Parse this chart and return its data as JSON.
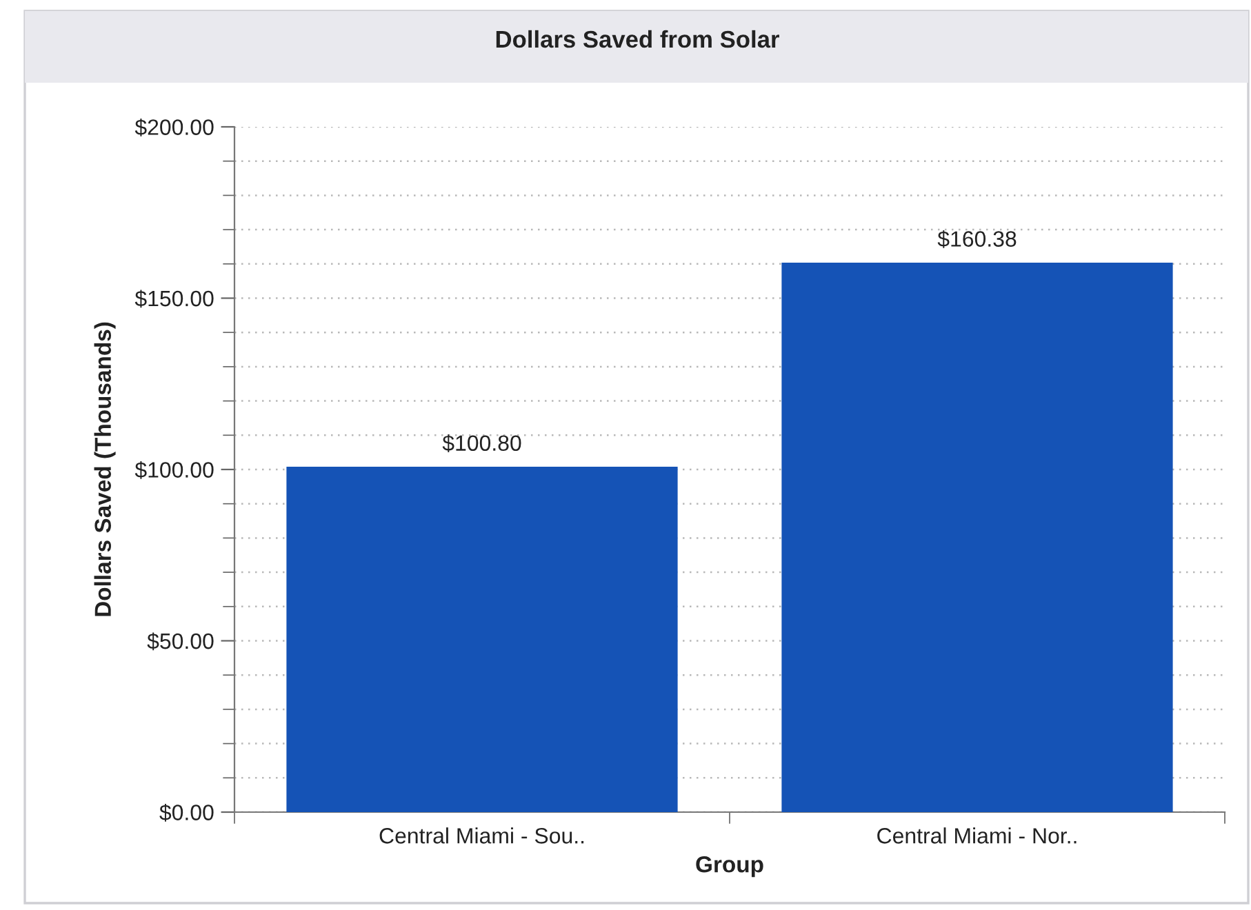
{
  "chart_data": {
    "type": "bar",
    "title": "Dollars Saved from Solar",
    "xlabel": "Group",
    "ylabel": "Dollars Saved (Thousands)",
    "categories": [
      "Central Miami - Sou..",
      "Central Miami - Nor.."
    ],
    "values": [
      100.8,
      160.38
    ],
    "value_labels": [
      "$100.80",
      "$160.38"
    ],
    "color": "#1553b6",
    "ylim": [
      0,
      200
    ],
    "yticks": [
      {
        "value": 0,
        "label": "$0.00"
      },
      {
        "value": 10,
        "label": null
      },
      {
        "value": 20,
        "label": null
      },
      {
        "value": 30,
        "label": null
      },
      {
        "value": 40,
        "label": null
      },
      {
        "value": 50,
        "label": "$50.00"
      },
      {
        "value": 60,
        "label": null
      },
      {
        "value": 70,
        "label": null
      },
      {
        "value": 80,
        "label": null
      },
      {
        "value": 90,
        "label": null
      },
      {
        "value": 100,
        "label": "$100.00"
      },
      {
        "value": 110,
        "label": null
      },
      {
        "value": 120,
        "label": null
      },
      {
        "value": 130,
        "label": null
      },
      {
        "value": 140,
        "label": null
      },
      {
        "value": 150,
        "label": "$150.00"
      },
      {
        "value": 160,
        "label": null
      },
      {
        "value": 170,
        "label": null
      },
      {
        "value": 180,
        "label": null
      },
      {
        "value": 190,
        "label": null
      },
      {
        "value": 200,
        "label": "$200.00"
      }
    ],
    "grid": "y"
  }
}
